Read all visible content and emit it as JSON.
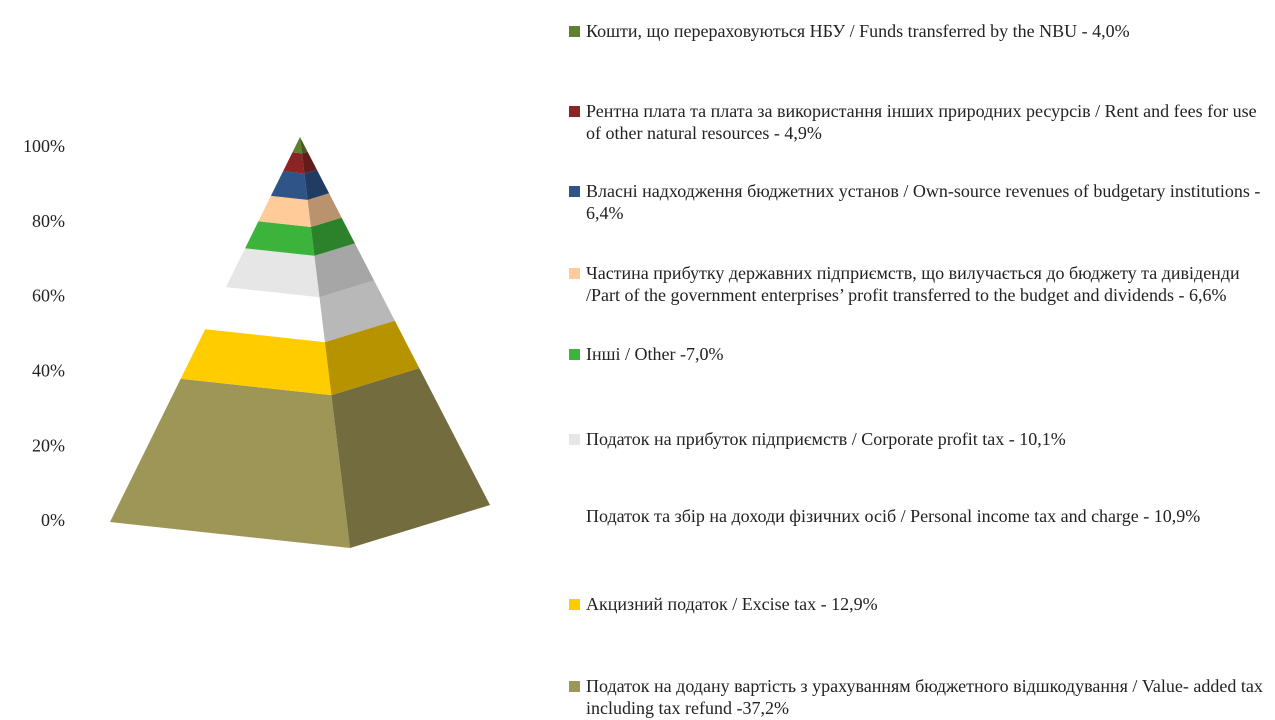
{
  "chart_data": {
    "type": "pyramid",
    "ylim": [
      0,
      100
    ],
    "yticks": [
      {
        "value": 0,
        "label": "0%"
      },
      {
        "value": 20,
        "label": "20%"
      },
      {
        "value": 40,
        "label": "40%"
      },
      {
        "value": 60,
        "label": "60%"
      },
      {
        "value": 80,
        "label": "80%"
      },
      {
        "value": 100,
        "label": "100%"
      }
    ],
    "series": [
      {
        "name": "Податок на додану вартість  з урахуванням бюджетного відшкодування / Value- added tax including tax refund -37,2%",
        "color": "#9e9656",
        "values": [
          37.2
        ]
      },
      {
        "name": "Акцизний податок / Excise tax - 12,9%",
        "color": "#ffcc00",
        "values": [
          12.9
        ]
      },
      {
        "name": "Податок та збір на доходи фізичних осіб / Personal income tax and charge - 10,9%",
        "color": "#ffffff",
        "values": [
          10.9
        ]
      },
      {
        "name": "Податок на прибуток підприємств / Corporate profit tax - 10,1%",
        "color": "#e6e6e6",
        "values": [
          10.1
        ]
      },
      {
        "name": "Інші / Other -7,0%",
        "color": "#3cb43c",
        "values": [
          7.0
        ]
      },
      {
        "name": "Частина прибутку державних підприємств, що вилучається до бюджету та дивіденди /Part of the government enterprises’ profit transferred to the budget and dividends - 6,6%",
        "color": "#ffcc99",
        "values": [
          6.6
        ]
      },
      {
        "name": "Власні надходження бюджетних установ  / Own-source revenues of budgetary institutions - 6,4%",
        "color": "#2e5488",
        "values": [
          6.4
        ]
      },
      {
        "name": "Рентна плата та плата за використання інших природних ресурсів / Rent and fees for use of other natural resources  - 4,9%",
        "color": "#8b2525",
        "values": [
          4.9
        ]
      },
      {
        "name": "Кошти, що перераховуються НБУ / Funds transferred by the NBU  - 4,0%",
        "color": "#5f8030",
        "values": [
          4.0
        ]
      }
    ]
  }
}
